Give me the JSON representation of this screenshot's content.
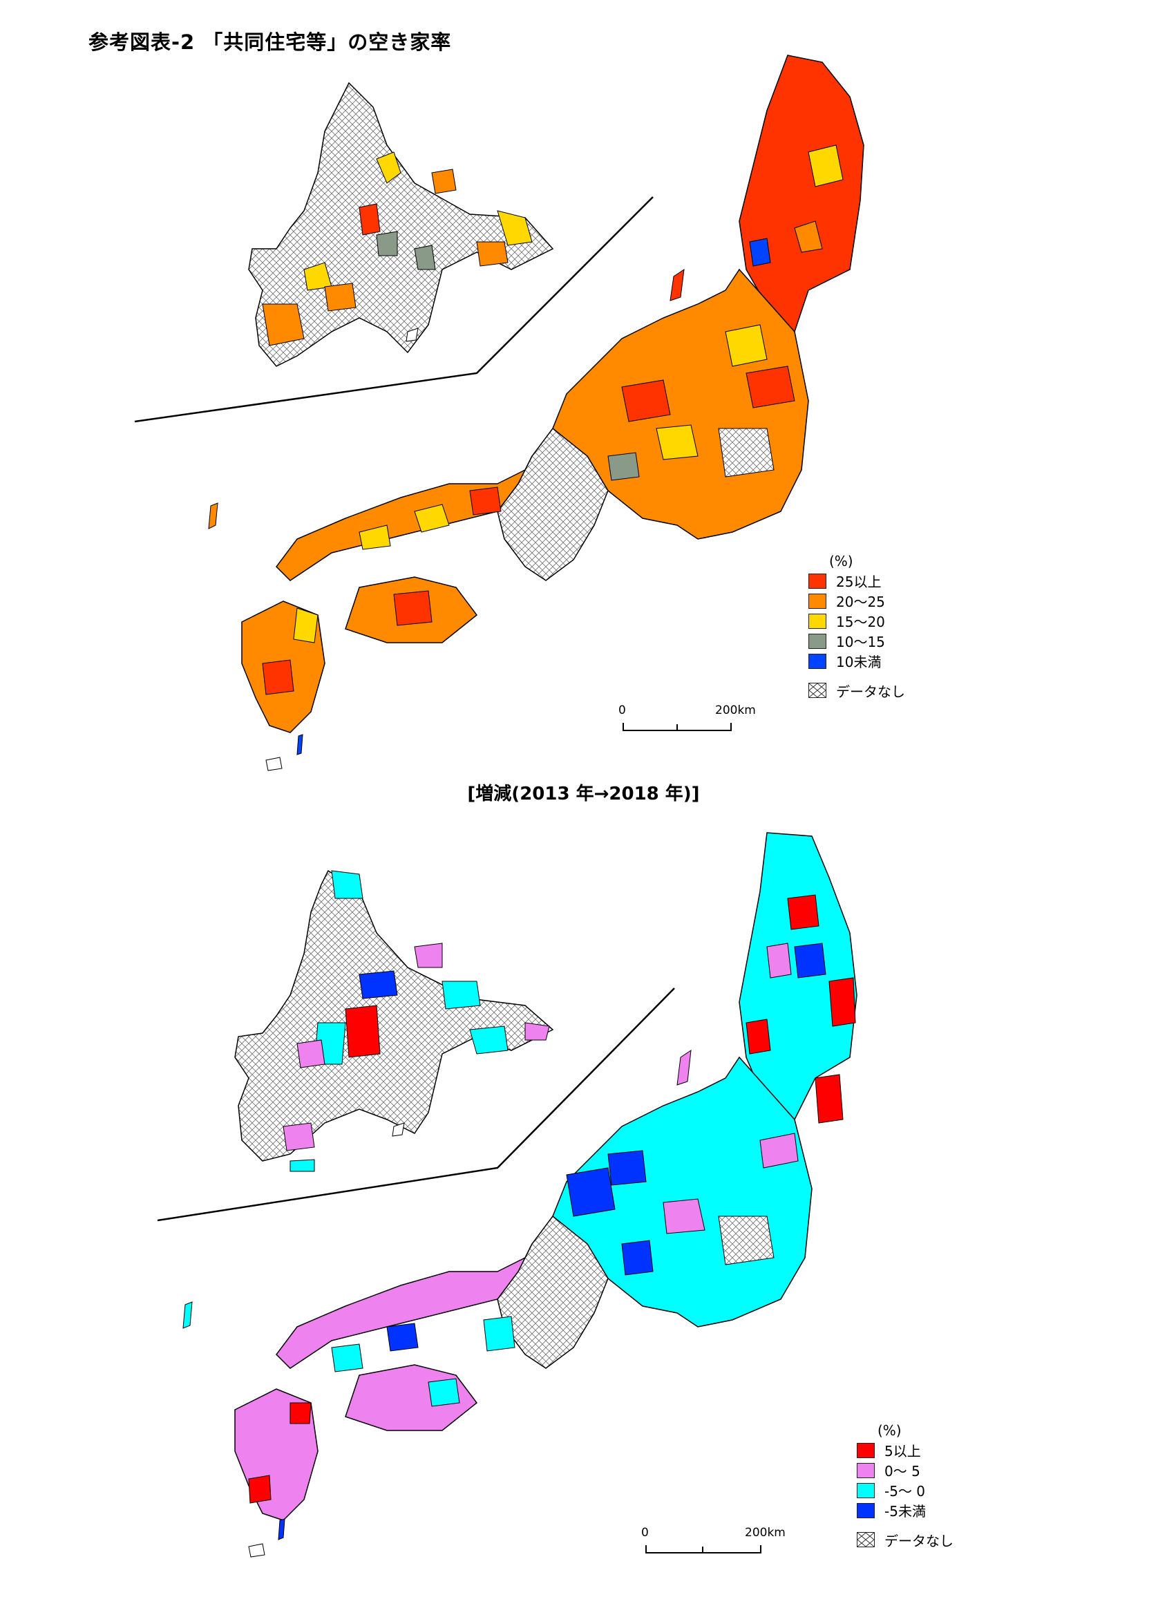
{
  "title": "参考図表-2 「共同住宅等」の空き家率",
  "subtitle": "[増減(2013 年→2018 年)]",
  "map_top": {
    "legend_unit": "(%)",
    "legend": [
      {
        "label": "25以上",
        "color": "#ff3300"
      },
      {
        "label": "20〜25",
        "color": "#ff8a00"
      },
      {
        "label": "15〜20",
        "color": "#ffd800"
      },
      {
        "label": "10〜15",
        "color": "#8a9a88"
      },
      {
        "label": "10未満",
        "color": "#0044ff"
      }
    ],
    "nodata_label": "データなし",
    "scale": {
      "zero": "0",
      "max": "200km"
    }
  },
  "map_bottom": {
    "legend_unit": "(%)",
    "legend": [
      {
        "label": "5以上",
        "color": "#ff0000"
      },
      {
        "label": "0〜 5",
        "color": "#ee82ee"
      },
      {
        "label": "-5〜 0",
        "color": "#00ffff"
      },
      {
        "label": "-5未満",
        "color": "#0033ff"
      }
    ],
    "nodata_label": "データなし",
    "scale": {
      "zero": "0",
      "max": "200km"
    }
  }
}
